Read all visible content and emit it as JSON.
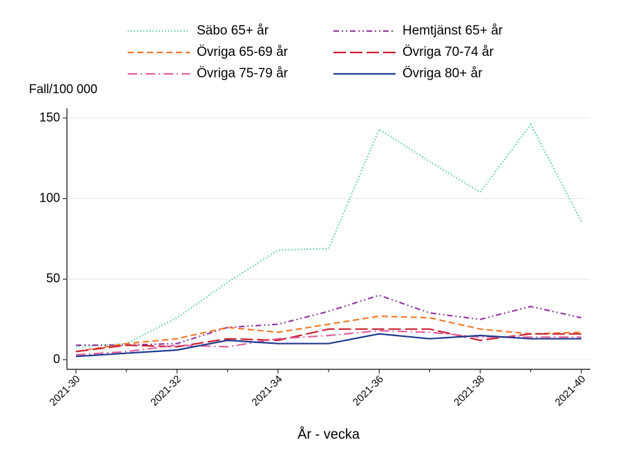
{
  "chart_data": {
    "type": "line",
    "y_label": "Fall/100 000",
    "x_label": "År - vecka",
    "categories": [
      "2021-30",
      null,
      "2021-32",
      null,
      "2021-34",
      null,
      "2021-36",
      null,
      "2021-38",
      null,
      "2021-40"
    ],
    "ylim": [
      -6,
      156
    ],
    "yticks": [
      0,
      50,
      100,
      150
    ],
    "grid": true,
    "series": [
      {
        "name": "Säbo 65+ år",
        "color": "#4fc9a0",
        "style": "dotted",
        "values": [
          8,
          10,
          26,
          48,
          68,
          69,
          143,
          123,
          104,
          146,
          86
        ]
      },
      {
        "name": "Hemtjänst 65+ år",
        "color": "#8e3aa0",
        "style": "dashdotdot",
        "values": [
          9,
          9,
          10,
          20,
          22,
          30,
          40,
          29,
          25,
          33,
          26
        ]
      },
      {
        "name": "Övriga 65-69 år",
        "color": "#f07b2a",
        "style": "dashed",
        "values": [
          5,
          10,
          13,
          20,
          17,
          22,
          27,
          26,
          19,
          16,
          17
        ]
      },
      {
        "name": "Övriga 70-74 år",
        "color": "#c8202e",
        "style": "longdash",
        "values": [
          5,
          9,
          8,
          13,
          12,
          19,
          19,
          19,
          12,
          16,
          16
        ]
      },
      {
        "name": "Övriga 75-79 år",
        "color": "#e0609e",
        "style": "dashdot",
        "values": [
          3,
          5,
          9,
          8,
          13,
          15,
          18,
          17,
          14,
          14,
          14
        ]
      },
      {
        "name": "Övriga 80+ år",
        "color": "#1f3a8f",
        "style": "solid",
        "values": [
          2,
          4,
          6,
          12,
          10,
          10,
          16,
          13,
          15,
          13,
          13
        ]
      }
    ]
  }
}
